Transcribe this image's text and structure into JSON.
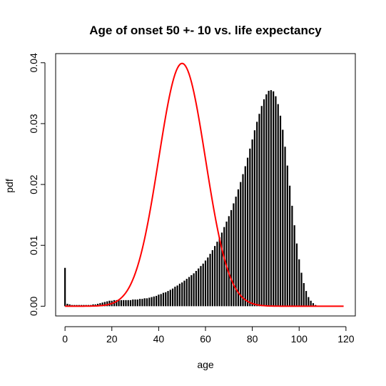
{
  "chart_data": {
    "type": "bar",
    "title": "Age of onset 50 +- 10 vs. life expectancy",
    "xlabel": "age",
    "ylabel": "pdf",
    "xlim": [
      -4,
      124
    ],
    "ylim": [
      -0.0016,
      0.0415
    ],
    "x_ticks": [
      0,
      20,
      40,
      60,
      80,
      100,
      120
    ],
    "y_ticks": [
      0.0,
      0.01,
      0.02,
      0.03,
      0.04
    ],
    "x_tick_labels": [
      "0",
      "20",
      "40",
      "60",
      "80",
      "100",
      "120"
    ],
    "y_tick_labels": [
      "0.00",
      "0.01",
      "0.02",
      "0.03",
      "0.04"
    ],
    "grid": false,
    "legend": "none",
    "series": [
      {
        "type": "bar",
        "color": "#000000",
        "x": [
          0,
          1,
          2,
          3,
          4,
          5,
          6,
          7,
          8,
          9,
          10,
          11,
          12,
          13,
          14,
          15,
          16,
          17,
          18,
          19,
          20,
          21,
          22,
          23,
          24,
          25,
          26,
          27,
          28,
          29,
          30,
          31,
          32,
          33,
          34,
          35,
          36,
          37,
          38,
          39,
          40,
          41,
          42,
          43,
          44,
          45,
          46,
          47,
          48,
          49,
          50,
          51,
          52,
          53,
          54,
          55,
          56,
          57,
          58,
          59,
          60,
          61,
          62,
          63,
          64,
          65,
          66,
          67,
          68,
          69,
          70,
          71,
          72,
          73,
          74,
          75,
          76,
          77,
          78,
          79,
          80,
          81,
          82,
          83,
          84,
          85,
          86,
          87,
          88,
          89,
          90,
          91,
          92,
          93,
          94,
          95,
          96,
          97,
          98,
          99,
          100,
          101,
          102,
          103,
          104,
          105,
          106,
          107,
          108,
          109,
          110,
          111,
          112,
          113,
          114,
          115,
          116,
          117,
          118,
          119
        ],
        "values": [
          0.0063,
          0.0004,
          0.0003,
          0.0002,
          0.0002,
          0.0002,
          0.0002,
          0.0002,
          0.0002,
          0.0002,
          0.0002,
          0.0002,
          0.0003,
          0.0003,
          0.0004,
          0.0005,
          0.0006,
          0.0007,
          0.0008,
          0.0009,
          0.0009,
          0.001,
          0.001,
          0.001,
          0.001,
          0.001,
          0.001,
          0.001,
          0.001,
          0.0011,
          0.0011,
          0.0011,
          0.0012,
          0.0012,
          0.0013,
          0.0013,
          0.0014,
          0.0015,
          0.0016,
          0.0017,
          0.0019,
          0.002,
          0.0022,
          0.0023,
          0.0025,
          0.0027,
          0.0029,
          0.0032,
          0.0034,
          0.0037,
          0.0039,
          0.0042,
          0.0045,
          0.0048,
          0.0051,
          0.0054,
          0.0058,
          0.0062,
          0.0066,
          0.007,
          0.0075,
          0.008,
          0.0086,
          0.0092,
          0.0099,
          0.0106,
          0.0113,
          0.0121,
          0.013,
          0.0139,
          0.0148,
          0.0158,
          0.0169,
          0.018,
          0.0192,
          0.0204,
          0.0217,
          0.023,
          0.0244,
          0.0259,
          0.0274,
          0.0289,
          0.0303,
          0.0316,
          0.0329,
          0.034,
          0.0348,
          0.0354,
          0.0355,
          0.0353,
          0.0345,
          0.0332,
          0.0313,
          0.029,
          0.0262,
          0.0231,
          0.0198,
          0.0165,
          0.0133,
          0.0103,
          0.0077,
          0.0055,
          0.0038,
          0.0025,
          0.0015,
          0.0009,
          0.0005,
          0.0002,
          0.0001,
          0.0001,
          0,
          0,
          0,
          0,
          0,
          0,
          0,
          0,
          0,
          0
        ]
      },
      {
        "type": "line",
        "color": "#ff0000",
        "x_start": 0,
        "x_end": 119,
        "normal_mean": 50,
        "normal_sd": 10
      }
    ]
  }
}
